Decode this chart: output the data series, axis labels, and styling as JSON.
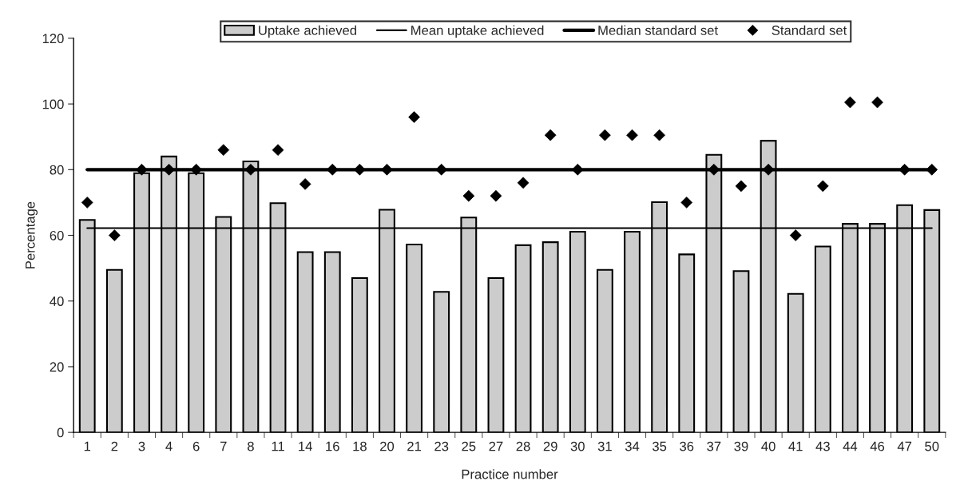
{
  "chart_data": {
    "type": "bar",
    "xlabel": "Practice number",
    "ylabel": "Percentage",
    "categories": [
      "1",
      "2",
      "3",
      "4",
      "6",
      "7",
      "8",
      "11",
      "14",
      "16",
      "18",
      "20",
      "21",
      "23",
      "25",
      "27",
      "28",
      "29",
      "30",
      "31",
      "34",
      "35",
      "36",
      "37",
      "39",
      "40",
      "41",
      "43",
      "44",
      "46",
      "47",
      "50"
    ],
    "series": [
      {
        "name": "Uptake achieved",
        "color": "#cccccc",
        "values": [
          64.7,
          49.5,
          78.9,
          84.0,
          78.9,
          65.6,
          82.5,
          69.8,
          54.9,
          54.9,
          47.0,
          67.8,
          57.2,
          42.8,
          65.4,
          47.0,
          57.0,
          57.9,
          61.1,
          49.5,
          61.1,
          70.1,
          54.2,
          84.5,
          49.1,
          88.8,
          42.2,
          56.6,
          63.5,
          63.5,
          69.2,
          67.7
        ]
      },
      {
        "name": "Mean uptake achieved",
        "type": "line",
        "color": "#000000",
        "line_style": "solid",
        "values": [
          62.2,
          62.2,
          62.2,
          62.2,
          62.2,
          62.2,
          62.2,
          62.2,
          62.2,
          62.2,
          62.2,
          62.2,
          62.2,
          62.2,
          62.2,
          62.2,
          62.2,
          62.2,
          62.2,
          62.2,
          62.2,
          62.2,
          62.2,
          62.2,
          62.2,
          62.2,
          62.2,
          62.2,
          62.2,
          62.2,
          62.2,
          62.2
        ]
      },
      {
        "name": "Median standard set",
        "type": "line",
        "color": "#000000",
        "line_style": "solid",
        "values": [
          80,
          80,
          80,
          80,
          80,
          80,
          80,
          80,
          80,
          80,
          80,
          80,
          80,
          80,
          80,
          80,
          80,
          80,
          80,
          80,
          80,
          80,
          80,
          80,
          80,
          80,
          80,
          80,
          80,
          80,
          80,
          80
        ]
      },
      {
        "name": "Standard set",
        "type": "scatter",
        "color": "#000000",
        "marker": "diamond",
        "values": [
          70,
          60,
          80,
          80,
          80,
          86,
          80,
          86,
          75.6,
          80,
          80,
          80,
          96,
          80,
          72,
          72,
          76,
          90.5,
          80,
          90.5,
          90.5,
          90.5,
          70,
          80,
          75,
          80,
          60,
          75,
          100.5,
          100.5,
          80,
          80
        ]
      }
    ],
    "ylim": [
      0,
      120
    ],
    "yticks": [
      0,
      20,
      40,
      60,
      80,
      100,
      120
    ],
    "grid": false,
    "legend": "top"
  }
}
